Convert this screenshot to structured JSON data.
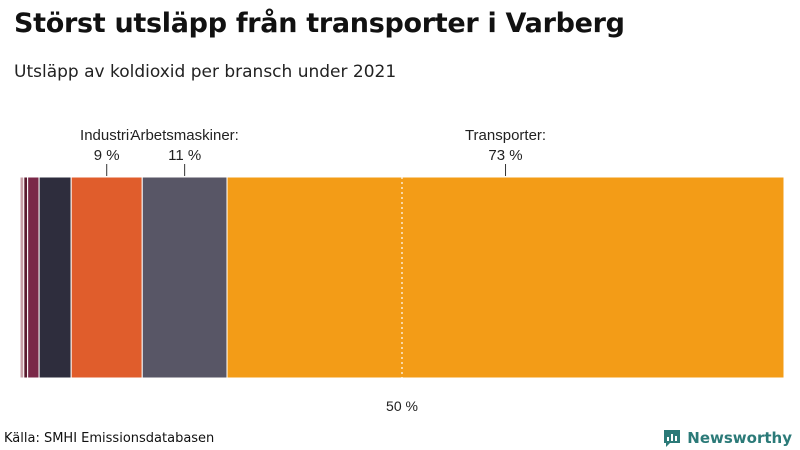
{
  "title": "Störst utsläpp från transporter i Varberg",
  "subtitle": "Utsläpp av koldioxid per bransch under 2021",
  "source": "Källa: SMHI Emissionsdatabasen",
  "brand": {
    "name": "Newsworthy",
    "color": "#2b7a78"
  },
  "chart_data": {
    "type": "bar",
    "orientation": "horizontal-stacked-100",
    "xlim": [
      0,
      100
    ],
    "reference_line": {
      "value": 50,
      "label": "50 %"
    },
    "segments": [
      {
        "value": 0.5,
        "color": "#c8a0a8"
      },
      {
        "value": 0.5,
        "color": "#5a1a2e"
      },
      {
        "value": 1.5,
        "color": "#7a2848"
      },
      {
        "value": 4.2,
        "color": "#2e2d3d"
      },
      {
        "label": "Industri:",
        "value_label": "9 %",
        "value": 9.3,
        "color": "#e05d2c"
      },
      {
        "label": "Arbetsmaskiner:",
        "value_label": "11 %",
        "value": 11.1,
        "color": "#585666"
      },
      {
        "label": "Transporter:",
        "value_label": "73 %",
        "value": 72.9,
        "color": "#f39c17"
      }
    ]
  }
}
